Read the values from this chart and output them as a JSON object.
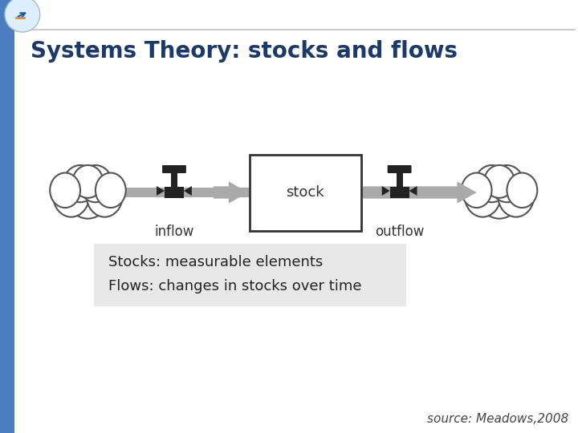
{
  "title": "Systems Theory: stocks and flows",
  "title_color": "#1a3a6b",
  "title_fontsize": 20,
  "background_color": "#ffffff",
  "left_bar_color": "#4a7ec0",
  "stock_label": "stock",
  "inflow_label": "inflow",
  "outflow_label": "outflow",
  "stocks_text": "Stocks: measurable elements",
  "flows_text": "Flows: changes in stocks over time",
  "source_text": "source: Meadows,2008",
  "pipe_color": "#aaaaaa",
  "arrow_color": "#aaaaaa",
  "box_color": "#ffffff",
  "box_edge_color": "#333333",
  "valve_color": "#222222",
  "cloud_color": "#ffffff",
  "cloud_edge_color": "#555555",
  "info_box_color": "#e8e8e8",
  "label_fontsize": 12,
  "info_fontsize": 13,
  "source_fontsize": 11
}
